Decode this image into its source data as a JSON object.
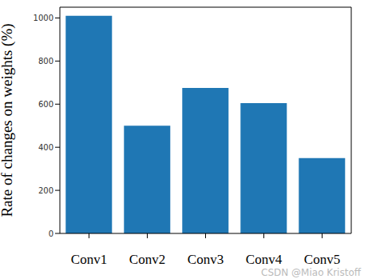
{
  "chart_data": {
    "type": "bar",
    "y_label": "Rate of changes on weights (%)",
    "categories": [
      "Conv1",
      "Conv2",
      "Conv3",
      "Conv4",
      "Conv5"
    ],
    "values": [
      1010,
      500,
      675,
      605,
      350
    ],
    "color": "#1f77b4",
    "ylim": [
      0,
      1050
    ],
    "yticks": [
      0,
      200,
      400,
      600,
      800,
      1000
    ],
    "grid": false,
    "annotations": [
      "CSDN @Miao Kristoff"
    ]
  }
}
